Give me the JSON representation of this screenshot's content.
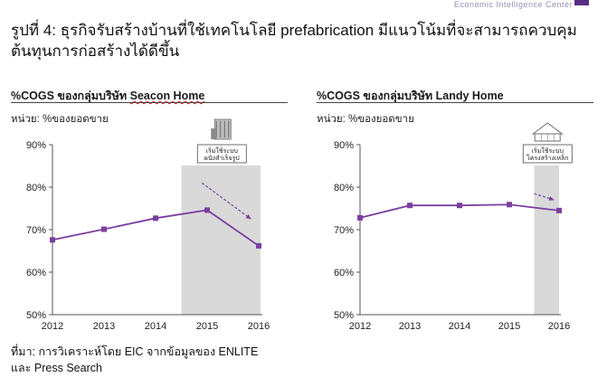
{
  "header": {
    "fragment_text": "Economic Intelligence Center"
  },
  "figure": {
    "title_line1": "รูปที่ 4: ธุรกิจรับสร้างบ้านที่ใช้เทคโนโลยี prefabrication มีแนวโน้มที่จะสามารถควบคุม",
    "title_line2": "ต้นทุนการก่อสร้างได้ดีขึ้น"
  },
  "source": {
    "line1": "ที่มา: การวิเคราะห์โดย EIC จากข้อมูลของ ENLITE",
    "line2": "และ Press Search"
  },
  "colors": {
    "series": "#7b3fa0",
    "shade": "#d9d9d9",
    "axis": "#555555",
    "arrow": "#7b3fa0"
  },
  "chart_data": [
    {
      "type": "line",
      "title_prefix": "%COGS ของกลุ่มบริษัท ",
      "title_company": "Seacon Home",
      "unit_label": "หน่วย: %ของยอดขาย",
      "x": [
        "2012",
        "2013",
        "2014",
        "2015",
        "2016"
      ],
      "series": [
        {
          "values": [
            67.6,
            70.1,
            72.7,
            74.6,
            66.2
          ]
        }
      ],
      "ylim": [
        50,
        90
      ],
      "yticks": [
        "50%",
        "60%",
        "70%",
        "80%",
        "90%"
      ],
      "highlight_from": 2015,
      "annotation": {
        "line1": "เริ่มใช้ระบบ",
        "line2": "ผนังสำเร็จรูป",
        "icon": "wall-panel-icon"
      },
      "trend_arrow": {
        "from": [
          2014.9,
          81.0
        ],
        "to": [
          2015.85,
          72.5
        ]
      }
    },
    {
      "type": "line",
      "title_prefix": "%COGS ของกลุ่มบริษัท ",
      "title_company": "Landy Home",
      "unit_label": "หน่วย: %ของยอดขาย",
      "x": [
        "2012",
        "2013",
        "2014",
        "2015",
        "2016"
      ],
      "series": [
        {
          "values": [
            72.8,
            75.7,
            75.7,
            75.9,
            74.5
          ]
        }
      ],
      "ylim": [
        50,
        90
      ],
      "yticks": [
        "50%",
        "60%",
        "70%",
        "80%",
        "90%"
      ],
      "highlight_from": 2016,
      "annotation": {
        "line1": "เริ่มใช้ระบบ",
        "line2": "โครงสร้างเหล็ก",
        "icon": "steel-frame-icon"
      },
      "trend_arrow": {
        "from": [
          2015.5,
          78.5
        ],
        "to": [
          2015.9,
          77.0
        ]
      }
    }
  ]
}
